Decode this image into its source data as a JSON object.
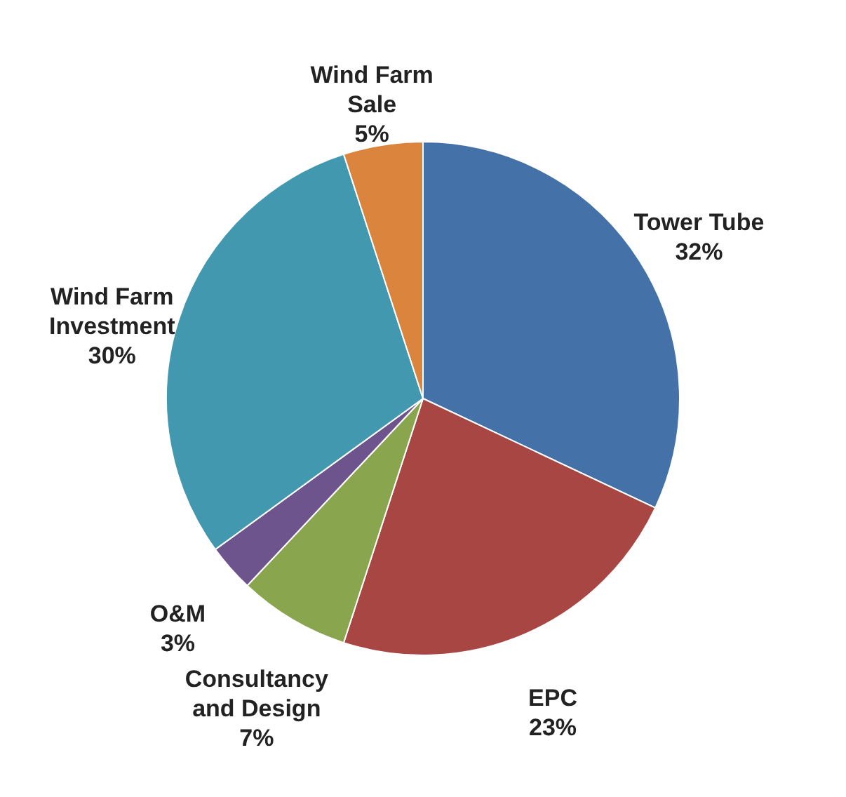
{
  "chart_data": {
    "type": "pie",
    "categories": [
      "Tower Tube",
      "EPC",
      "Consultancy and Design",
      "O&M",
      "Wind Farm Investment",
      "Wind Farm Sale"
    ],
    "values": [
      32,
      23,
      7,
      3,
      30,
      5
    ],
    "colors": [
      "#4471a7",
      "#a84644",
      "#89a54e",
      "#6e548d",
      "#4298af",
      "#db843d"
    ],
    "value_labels": [
      "32%",
      "23%",
      "7%",
      "3%",
      "30%",
      "5%"
    ]
  }
}
